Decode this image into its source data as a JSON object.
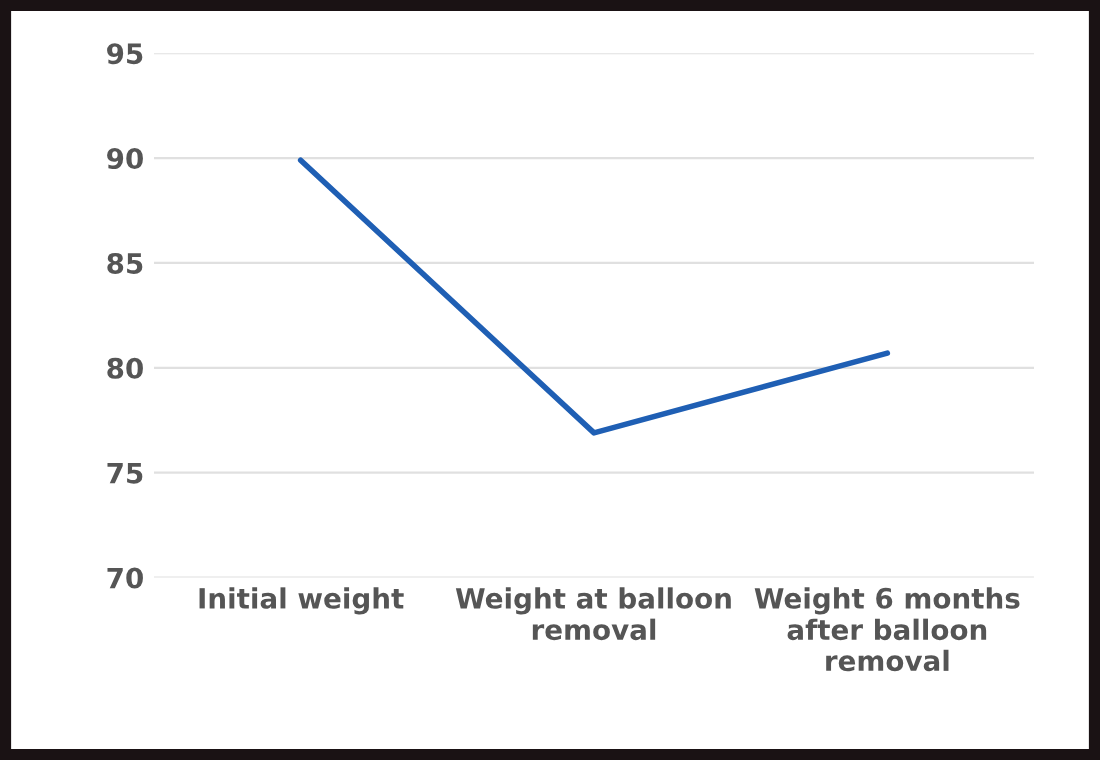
{
  "chart_data": {
    "type": "line",
    "categories": [
      "Initial weight",
      "Weight at balloon removal",
      "Weight 6 months after balloon removal"
    ],
    "series": [
      {
        "color": "#1f5fb4",
        "values": [
          89.9,
          76.9,
          80.7
        ]
      }
    ],
    "ylim": [
      70,
      95
    ],
    "yticks": [
      70,
      75,
      80,
      85,
      90,
      95
    ],
    "grid": "y",
    "marker": "none",
    "line_style": "solid"
  }
}
